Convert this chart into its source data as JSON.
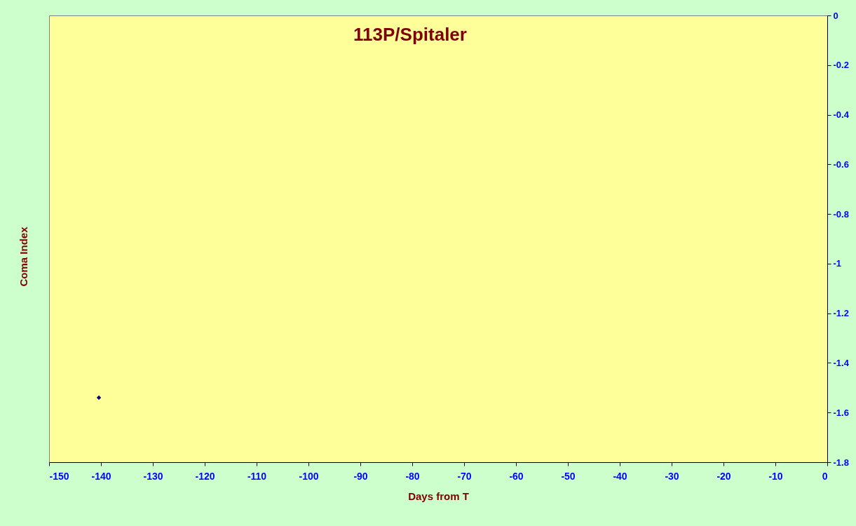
{
  "chart_data": {
    "type": "scatter",
    "title": "113P/Spitaler",
    "xlabel": "Days from T",
    "ylabel": "Coma Index",
    "x": [
      -140.4
    ],
    "series": [
      {
        "color": "#000080",
        "values": [
          -1.54
        ]
      }
    ],
    "xlim": [
      -150,
      0
    ],
    "xticks": [
      -150,
      -140,
      -130,
      -120,
      -110,
      -100,
      -90,
      -80,
      -70,
      -60,
      -50,
      -40,
      -30,
      -20,
      -10,
      0
    ],
    "ylim": [
      -1.8,
      0
    ],
    "yticks": [
      -1.8,
      -1.6,
      -1.4,
      -1.2,
      -1,
      -0.8,
      -0.6,
      -0.4,
      -0.2,
      0
    ],
    "marker": "diamond",
    "grid": false
  }
}
